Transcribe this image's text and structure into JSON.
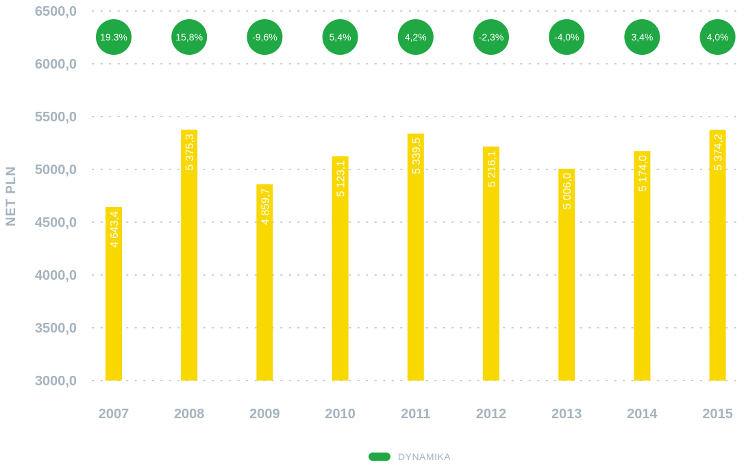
{
  "chart_data": {
    "type": "bar",
    "ylabel": "NET PLN",
    "xlabel": "",
    "ylim": [
      3000,
      6500
    ],
    "yticks": [
      "3000,0",
      "3500,0",
      "4000,0",
      "4500,0",
      "5000,0",
      "5500,0",
      "6000,0",
      "6500,0"
    ],
    "grid": true,
    "categories": [
      "2007",
      "2008",
      "2009",
      "2010",
      "2011",
      "2012",
      "2013",
      "2014",
      "2015"
    ],
    "values": [
      4643.4,
      5375.3,
      4859.7,
      5123.1,
      5339.5,
      5216.1,
      5006.0,
      5174.0,
      5374.2
    ],
    "value_labels": [
      "4 643,4",
      "5 375,3",
      "4 859,7",
      "5 123,1",
      "5 339,5",
      "5 216,1",
      "5 006,0",
      "5 174,0",
      "5 374,2"
    ],
    "dynamics": {
      "name": "DYNAMIKA",
      "labels": [
        "19.3%",
        "15,8%",
        "-9,6%",
        "5,4%",
        "4,2%",
        "-2,3%",
        "-4,0%",
        "3,4%",
        "4,0%"
      ]
    },
    "legend": {
      "position": "bottom",
      "entries": [
        "DYNAMIKA"
      ]
    },
    "colors": {
      "bar": "#f8d800",
      "dynamics": "#1fa843",
      "axis_text": "#a6b4c0",
      "grid": "#c9ced3"
    }
  }
}
